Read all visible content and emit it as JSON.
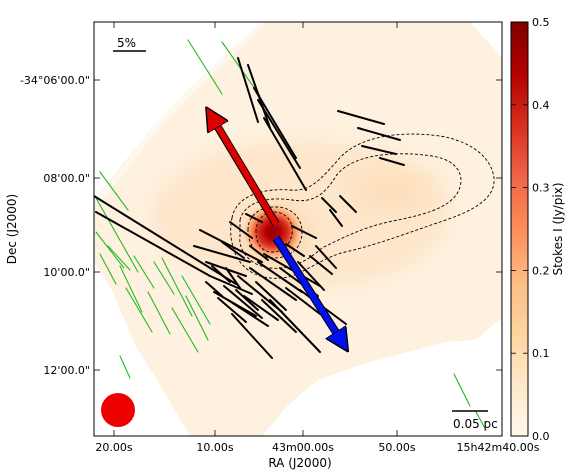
{
  "chart_data": {
    "type": "heatmap",
    "title": "",
    "xlabel": "RA (J2000)",
    "ylabel": "Dec (J2000)",
    "x_ticks": [
      "20.00s",
      "10.00s",
      "43m00.00s",
      "50.00s",
      "15h42m40.00s"
    ],
    "y_ticks": [
      "-34°06'00.0\"",
      "08'00.0\"",
      "10'00.0\"",
      "12'00.0\""
    ],
    "colorbar": {
      "label": "Stokes I (Jy/pix)",
      "min": 0.0,
      "max": 0.5,
      "ticks": [
        "0.0",
        "0.1",
        "0.2",
        "0.3",
        "0.4",
        "0.5"
      ],
      "colormap": "OrRd",
      "colors": [
        "#fff7ec",
        "#fee8c8",
        "#fdd49e",
        "#fdbb84",
        "#fc8d59",
        "#ef6548",
        "#d7301f",
        "#b30000",
        "#7f0000"
      ]
    },
    "peak_intensity": 0.5,
    "grid": false,
    "legend": "none",
    "contours": {
      "levels": 4,
      "style": "dashed",
      "color": "#000000"
    },
    "polarization_scale_label": "5%",
    "physical_scale_label": "0.05 pc",
    "beam_color": "#ee0000",
    "arrows": [
      {
        "name": "red",
        "color": "#dd0000"
      },
      {
        "name": "blue",
        "color": "#0010ee"
      }
    ],
    "vectors_black_count": 47,
    "vectors_green_count": 15,
    "vector_colors": {
      "black": "#000000",
      "green": "#22bb22"
    }
  }
}
